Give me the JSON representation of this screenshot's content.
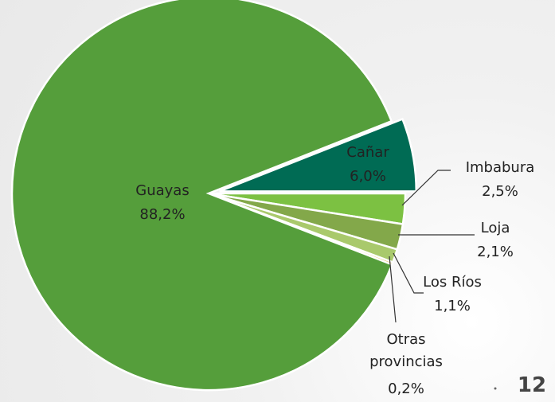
{
  "chart_data": {
    "type": "pie",
    "categories": [
      "Cañar",
      "Imbabura",
      "Loja",
      "Los Ríos",
      "Otras provincias",
      "Guayas"
    ],
    "values": [
      6.0,
      2.5,
      2.1,
      1.1,
      0.2,
      88.2
    ],
    "value_labels": [
      "6,0%",
      "2,5%",
      "2,1%",
      "1,1%",
      "0,2%",
      "88,2%"
    ],
    "colors": [
      "#006b54",
      "#7cc142",
      "#83a84a",
      "#a9c96c",
      "#e0b43c",
      "#559e3b"
    ],
    "exploded": "Cañar"
  },
  "page_number": "12"
}
